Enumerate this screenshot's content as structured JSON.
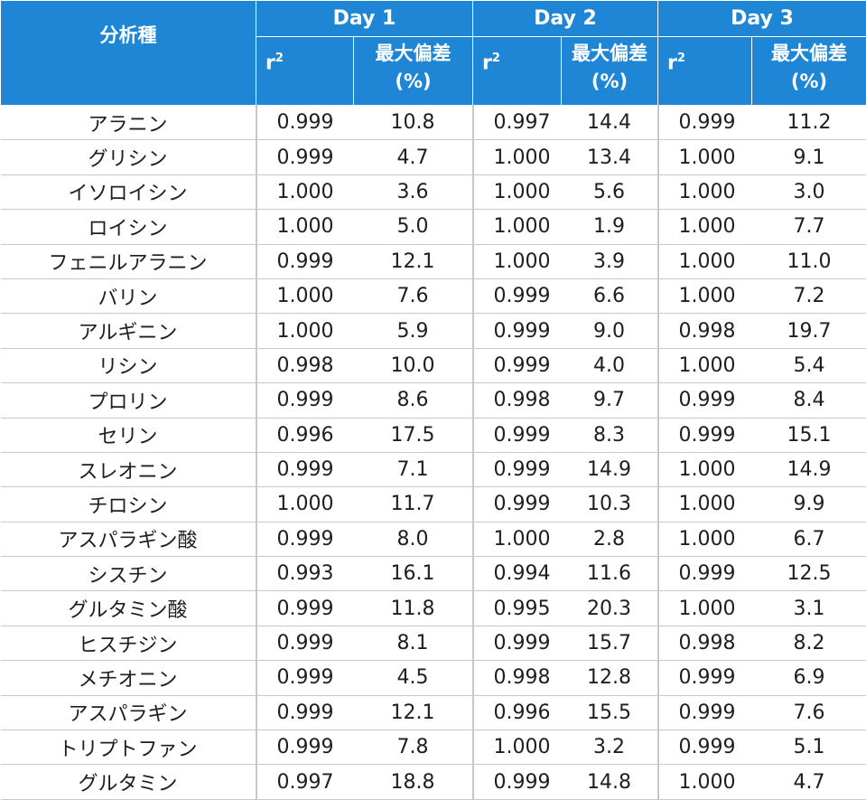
{
  "table": {
    "header": {
      "analyte_label": "分析種",
      "days": [
        "Day 1",
        "Day 2",
        "Day 3"
      ],
      "r2_base": "r",
      "r2_sup": "2",
      "max_dev_line1": "最大偏差",
      "max_dev_line2": "(%)"
    },
    "rows": [
      {
        "analyte": "アラニン",
        "d1_r2": "0.999",
        "d1_dev": "10.8",
        "d2_r2": "0.997",
        "d2_dev": "14.4",
        "d3_r2": "0.999",
        "d3_dev": "11.2"
      },
      {
        "analyte": "グリシン",
        "d1_r2": "0.999",
        "d1_dev": "4.7",
        "d2_r2": "1.000",
        "d2_dev": "13.4",
        "d3_r2": "1.000",
        "d3_dev": "9.1"
      },
      {
        "analyte": "イソロイシン",
        "d1_r2": "1.000",
        "d1_dev": "3.6",
        "d2_r2": "1.000",
        "d2_dev": "5.6",
        "d3_r2": "1.000",
        "d3_dev": "3.0"
      },
      {
        "analyte": "ロイシン",
        "d1_r2": "1.000",
        "d1_dev": "5.0",
        "d2_r2": "1.000",
        "d2_dev": "1.9",
        "d3_r2": "1.000",
        "d3_dev": "7.7"
      },
      {
        "analyte": "フェニルアラニン",
        "d1_r2": "0.999",
        "d1_dev": "12.1",
        "d2_r2": "1.000",
        "d2_dev": "3.9",
        "d3_r2": "1.000",
        "d3_dev": "11.0"
      },
      {
        "analyte": "バリン",
        "d1_r2": "1.000",
        "d1_dev": "7.6",
        "d2_r2": "0.999",
        "d2_dev": "6.6",
        "d3_r2": "1.000",
        "d3_dev": "7.2"
      },
      {
        "analyte": "アルギニン",
        "d1_r2": "1.000",
        "d1_dev": "5.9",
        "d2_r2": "0.999",
        "d2_dev": "9.0",
        "d3_r2": "0.998",
        "d3_dev": "19.7"
      },
      {
        "analyte": "リシン",
        "d1_r2": "0.998",
        "d1_dev": "10.0",
        "d2_r2": "0.999",
        "d2_dev": "4.0",
        "d3_r2": "1.000",
        "d3_dev": "5.4"
      },
      {
        "analyte": "プロリン",
        "d1_r2": "0.999",
        "d1_dev": "8.6",
        "d2_r2": "0.998",
        "d2_dev": "9.7",
        "d3_r2": "0.999",
        "d3_dev": "8.4"
      },
      {
        "analyte": "セリン",
        "d1_r2": "0.996",
        "d1_dev": "17.5",
        "d2_r2": "0.999",
        "d2_dev": "8.3",
        "d3_r2": "0.999",
        "d3_dev": "15.1"
      },
      {
        "analyte": "スレオニン",
        "d1_r2": "0.999",
        "d1_dev": "7.1",
        "d2_r2": "0.999",
        "d2_dev": "14.9",
        "d3_r2": "1.000",
        "d3_dev": "14.9"
      },
      {
        "analyte": "チロシン",
        "d1_r2": "1.000",
        "d1_dev": "11.7",
        "d2_r2": "0.999",
        "d2_dev": "10.3",
        "d3_r2": "1.000",
        "d3_dev": "9.9"
      },
      {
        "analyte": "アスパラギン酸",
        "d1_r2": "0.999",
        "d1_dev": "8.0",
        "d2_r2": "1.000",
        "d2_dev": "2.8",
        "d3_r2": "1.000",
        "d3_dev": "6.7"
      },
      {
        "analyte": "シスチン",
        "d1_r2": "0.993",
        "d1_dev": "16.1",
        "d2_r2": "0.994",
        "d2_dev": "11.6",
        "d3_r2": "0.999",
        "d3_dev": "12.5"
      },
      {
        "analyte": "グルタミン酸",
        "d1_r2": "0.999",
        "d1_dev": "11.8",
        "d2_r2": "0.995",
        "d2_dev": "20.3",
        "d3_r2": "1.000",
        "d3_dev": "3.1"
      },
      {
        "analyte": "ヒスチジン",
        "d1_r2": "0.999",
        "d1_dev": "8.1",
        "d2_r2": "0.999",
        "d2_dev": "15.7",
        "d3_r2": "0.998",
        "d3_dev": "8.2"
      },
      {
        "analyte": "メチオニン",
        "d1_r2": "0.999",
        "d1_dev": "4.5",
        "d2_r2": "0.998",
        "d2_dev": "12.8",
        "d3_r2": "0.999",
        "d3_dev": "6.9"
      },
      {
        "analyte": "アスパラギン",
        "d1_r2": "0.999",
        "d1_dev": "12.1",
        "d2_r2": "0.996",
        "d2_dev": "15.5",
        "d3_r2": "0.999",
        "d3_dev": "7.6"
      },
      {
        "analyte": "トリプトファン",
        "d1_r2": "0.999",
        "d1_dev": "7.8",
        "d2_r2": "1.000",
        "d2_dev": "3.2",
        "d3_r2": "0.999",
        "d3_dev": "5.1"
      },
      {
        "analyte": "グルタミン",
        "d1_r2": "0.997",
        "d1_dev": "18.8",
        "d2_r2": "0.999",
        "d2_dev": "14.8",
        "d3_r2": "1.000",
        "d3_dev": "4.7"
      }
    ]
  }
}
